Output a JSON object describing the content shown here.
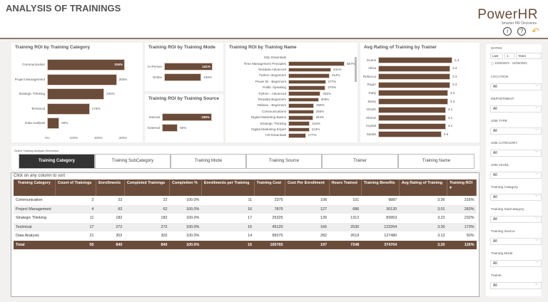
{
  "header": {
    "title": "ANALYSIS OF TRAININGS",
    "logo": "PowerHR",
    "tagline": "Smarter HR Decisions",
    "icons": [
      "info-icon",
      "help-icon",
      "back-icon"
    ],
    "accent": "#6b4c3b"
  },
  "charts": {
    "category": {
      "title": "Training ROI by Training Category",
      "labels": [
        "Communication",
        "Project Management",
        "Strategic Thinking",
        "Technical",
        "Data Analysis"
      ],
      "values": [
        316,
        283,
        232,
        173,
        50
      ],
      "display": [
        "316%",
        "283%",
        "232%",
        "173%",
        "50%"
      ],
      "ticks": [
        "0%",
        "100%",
        "200%",
        "300%"
      ]
    },
    "mode": {
      "title": "Training ROI by Training Mode",
      "labels": [
        "In-Person",
        "Online"
      ],
      "values": [
        141,
        108
      ],
      "display": [
        "141%",
        "108%"
      ]
    },
    "source": {
      "title": "Training ROI by Training Source",
      "labels": [
        "Internal",
        "External"
      ],
      "values": [
        189,
        60
      ],
      "display": [
        "189%",
        "60%"
      ]
    },
    "name": {
      "title": "Training ROI by Training Name",
      "labels": [
        "SQL Essentials",
        "Time Management Principles",
        "Teradata Advanced",
        "Python -Beginners",
        "Power BI - Beginners",
        "Public Speaking",
        "Python - Advanced",
        "Teradata Beginners",
        "Tableau - Beginners",
        "Communications",
        "Digital Marketing Basics",
        "Strategic Thinking",
        "Digital Marketing Expert",
        "HR Essentials"
      ],
      "values": [
        null,
        567,
        431,
        414,
        377,
        375,
        325,
        306,
        258,
        255,
        254,
        216,
        213,
        177
      ],
      "display": [
        "",
        "567%",
        "431%",
        "414%",
        "377%",
        "375%",
        "325%",
        "306%",
        "258%",
        "255%",
        "254%",
        "216%",
        "213%",
        "177%"
      ]
    },
    "trainer": {
      "title": "Avg Rating of Training by Trainer",
      "labels": [
        "Evans",
        "Alicia",
        "Rebecca",
        "Roger",
        "Patty",
        "Marty",
        "Ghosh",
        "Shenzi",
        "Crystal",
        "Sarabi"
      ],
      "values": [
        3.4,
        3.3,
        3.3,
        3.3,
        3.2,
        3.2,
        3.1,
        3.1,
        3.1,
        2.9
      ],
      "display": [
        "3.4",
        "3.3",
        "3.3",
        "3.3",
        "3.2",
        "3.2",
        "3.1",
        "3.1",
        "3.1",
        "2.9"
      ]
    }
  },
  "dimension": {
    "label": "Select Training Analysis Dimension",
    "options": [
      "Training Category",
      "Training SubCategory",
      "Training Mode",
      "Training Source",
      "Trainer",
      "Training Name"
    ],
    "selected": "Training Category"
  },
  "table": {
    "hint": "Click on any column to sort",
    "columns": [
      "Training Category",
      "Count of Trainings",
      "Enrollments",
      "Completed Trainings",
      "Completion %",
      "Enrollments per Training",
      "Training Cost",
      "Cost Per Enrollment",
      "Hours Trained",
      "Training Benefits",
      "Avg Rating of Training",
      "Training ROI"
    ],
    "rows": [
      [
        "Communication",
        "2",
        "22",
        "22",
        "100.0%",
        "11",
        "2375",
        "108",
        "101",
        "9887",
        "3.36",
        "316%"
      ],
      [
        "Project Management",
        "4",
        "62",
        "62",
        "100.0%",
        "16",
        "7870",
        "127",
        "686",
        "30120",
        "3.01",
        "283%"
      ],
      [
        "Strategic Thinking",
        "11",
        "182",
        "182",
        "100.0%",
        "17",
        "25325",
        "139",
        "1312",
        "83953",
        "3.22",
        "232%"
      ],
      [
        "Technical",
        "17",
        "272",
        "272",
        "100.0%",
        "16",
        "45120",
        "166",
        "2530",
        "123264",
        "3.30",
        "173%"
      ],
      [
        "Data Analysis",
        "21",
        "302",
        "302",
        "100.0%",
        "14",
        "85075",
        "282",
        "2619",
        "127480",
        "3.12",
        "50%"
      ]
    ],
    "total": [
      "Total",
      "55",
      "840",
      "840",
      "100.0%",
      "15",
      "165765",
      "197",
      "7248",
      "374704",
      "3.20",
      "126%"
    ],
    "sort_column": "Training ROI",
    "sort_direction": "descending"
  },
  "filters": {
    "dates": {
      "label": "DATES",
      "period": "Last",
      "count": "1",
      "unit": "Years",
      "range": "10/26/2021 - 10/25/2022"
    },
    "items": [
      {
        "label": "LOCATION",
        "value": "All"
      },
      {
        "label": "DEPARTMENT",
        "value": "All"
      },
      {
        "label": "JOB TYPE",
        "value": "All"
      },
      {
        "label": "JOB CATEGORY",
        "value": "All"
      },
      {
        "label": "JOB LEVEL",
        "value": "All"
      },
      {
        "label": "Training Category",
        "value": "All"
      },
      {
        "label": "Training SubCategory",
        "value": "All"
      },
      {
        "label": "Training Source",
        "value": "All"
      },
      {
        "label": "Training Mode",
        "value": "All"
      },
      {
        "label": "Trainer",
        "value": "All"
      }
    ]
  }
}
